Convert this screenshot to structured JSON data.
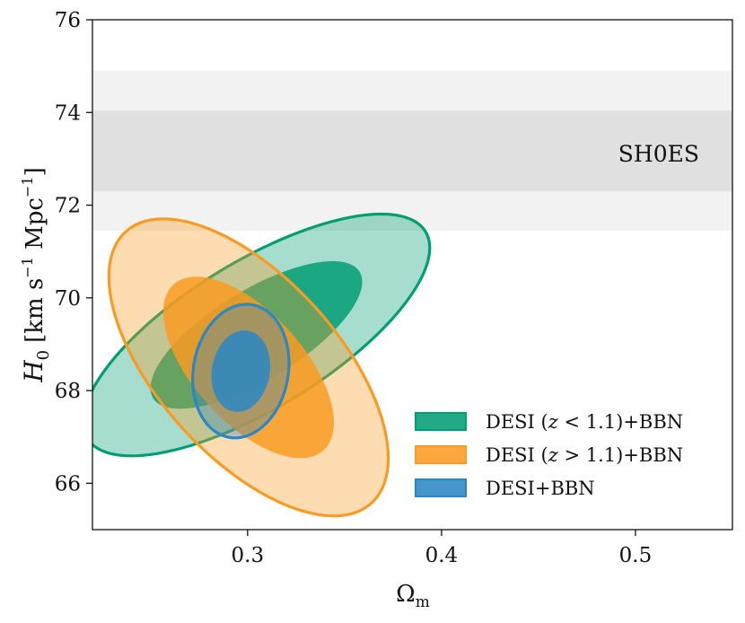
{
  "chart_data": {
    "type": "contour",
    "xlabel": "Ωm",
    "xlabel_base": "Ω",
    "xlabel_sub": "m",
    "ylabel": "H0 [km s−1 Mpc−1]",
    "ylabel_parts": {
      "base": "H",
      "sub": "0",
      "unit_a": "[km s",
      "sup_a": "−1",
      "unit_b": " Mpc",
      "sup_b": "−1",
      "unit_c": "]"
    },
    "xlim": [
      0.22,
      0.55
    ],
    "ylim": [
      65.0,
      76.0
    ],
    "xticks": [
      0.3,
      0.4,
      0.5
    ],
    "xtick_labels": [
      "0.3",
      "0.4",
      "0.5"
    ],
    "yticks": [
      66,
      68,
      70,
      72,
      74,
      76
    ],
    "ytick_labels": [
      "66",
      "68",
      "70",
      "72",
      "74",
      "76"
    ],
    "grid": false,
    "legend_position": "lower-right",
    "band": {
      "name": "SH0ES",
      "inner": [
        72.3,
        74.04
      ],
      "outer": [
        71.45,
        74.9
      ],
      "inner_color": "#e0e0e0",
      "outer_color": "#f2f2f2"
    },
    "series": [
      {
        "name": "DESI (z < 1.1)+BBN",
        "legend_label": "DESI (z < 1.1)+BBN",
        "color": "#029e73",
        "center": [
          0.3045,
          69.2
        ],
        "sigma": [
          0.036,
          1.05
        ],
        "rho": 0.72,
        "levels": [
          2.3,
          6.17
        ]
      },
      {
        "name": "DESI (z > 1.1)+BBN",
        "legend_label": "DESI (z > 1.1)+BBN",
        "color": "#f99b22",
        "center": [
          0.3005,
          68.5
        ],
        "sigma": [
          0.029,
          1.29
        ],
        "rho": -0.61,
        "levels": [
          2.3,
          6.17
        ]
      },
      {
        "name": "DESI+BBN",
        "legend_label": "DESI+BBN",
        "color": "#2a87c4",
        "center": [
          0.2965,
          68.42
        ],
        "sigma": [
          0.01,
          0.58
        ],
        "rho": 0.12,
        "levels": [
          2.3,
          6.17
        ]
      }
    ]
  }
}
